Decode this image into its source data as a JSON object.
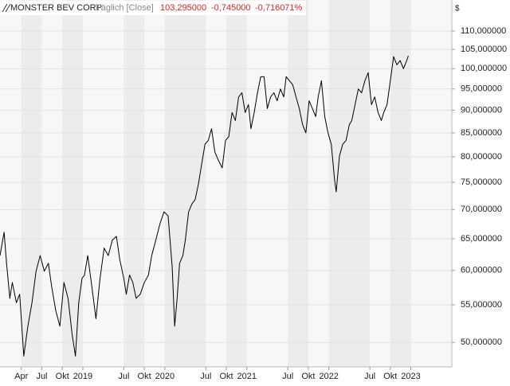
{
  "chart_data": {
    "type": "line",
    "title": "MONSTER BEV CORP",
    "interval": "Täglich [Close]",
    "last": "103,295000",
    "change": "-0,745000",
    "change_pct": "-0,716071%",
    "y_label": "$",
    "log_scale": true,
    "grid": true,
    "ylim": [
      47,
      119
    ],
    "yticks": [
      {
        "value": 50,
        "label": "50,000000"
      },
      {
        "value": 55,
        "label": "55,000000"
      },
      {
        "value": 60,
        "label": "60,000000"
      },
      {
        "value": 65,
        "label": "65,000000"
      },
      {
        "value": 70,
        "label": "70,000000"
      },
      {
        "value": 75,
        "label": "75,000000"
      },
      {
        "value": 80,
        "label": "80,000000"
      },
      {
        "value": 85,
        "label": "85,000000"
      },
      {
        "value": 90,
        "label": "90,000000"
      },
      {
        "value": 95,
        "label": "95,000000"
      },
      {
        "value": 100,
        "label": "100,000000"
      },
      {
        "value": 105,
        "label": "105,000000"
      },
      {
        "value": 110,
        "label": "110,000000"
      }
    ],
    "xlim": [
      2017.99,
      2023.5
    ],
    "xticks": [
      {
        "value": 2018.25,
        "label": "Apr"
      },
      {
        "value": 2018.5,
        "label": "Jul"
      },
      {
        "value": 2018.75,
        "label": "Okt"
      },
      2019,
      {
        "value": 2019.5,
        "label": "Jul"
      },
      {
        "value": 2019.75,
        "label": "Okt"
      },
      2020,
      {
        "value": 2020.5,
        "label": "Jul"
      },
      {
        "value": 2020.75,
        "label": "Okt"
      },
      2021,
      {
        "value": 2021.5,
        "label": "Jul"
      },
      {
        "value": 2021.75,
        "label": "Okt"
      },
      2022,
      {
        "value": 2022.5,
        "label": "Jul"
      },
      {
        "value": 2022.75,
        "label": "Okt"
      },
      2023
    ],
    "series": [
      {
        "name": "MONSTER BEV CORP",
        "color": "#000000",
        "x": [
          2017.99,
          2018.04,
          2018.07,
          2018.11,
          2018.14,
          2018.19,
          2018.23,
          2018.28,
          2018.33,
          2018.38,
          2018.43,
          2018.48,
          2018.53,
          2018.58,
          2018.62,
          2018.67,
          2018.72,
          2018.77,
          2018.82,
          2018.87,
          2018.91,
          2018.95,
          2018.99,
          2019.02,
          2019.06,
          2019.11,
          2019.16,
          2019.21,
          2019.26,
          2019.31,
          2019.36,
          2019.41,
          2019.45,
          2019.5,
          2019.53,
          2019.57,
          2019.61,
          2019.65,
          2019.7,
          2019.75,
          2019.8,
          2019.84,
          2019.89,
          2019.94,
          2019.99,
          2020.04,
          2020.09,
          2020.12,
          2020.15,
          2020.18,
          2020.22,
          2020.25,
          2020.29,
          2020.33,
          2020.37,
          2020.41,
          2020.45,
          2020.49,
          2020.53,
          2020.57,
          2020.61,
          2020.65,
          2020.7,
          2020.74,
          2020.78,
          2020.82,
          2020.86,
          2020.9,
          2020.94,
          2020.98,
          2021.02,
          2021.05,
          2021.09,
          2021.13,
          2021.17,
          2021.21,
          2021.25,
          2021.29,
          2021.33,
          2021.37,
          2021.41,
          2021.45,
          2021.48,
          2021.52,
          2021.56,
          2021.6,
          2021.64,
          2021.68,
          2021.72,
          2021.76,
          2021.8,
          2021.84,
          2021.87,
          2021.91,
          2021.95,
          2021.99,
          2022.03,
          2022.07,
          2022.09,
          2022.13,
          2022.17,
          2022.21,
          2022.25,
          2022.28,
          2022.32,
          2022.36,
          2022.4,
          2022.44,
          2022.48,
          2022.52,
          2022.56,
          2022.6,
          2022.64,
          2022.67,
          2022.71,
          2022.75,
          2022.79,
          2022.83,
          2022.87,
          2022.91,
          2022.95,
          2022.97
        ],
        "values": [
          62.3,
          66.1,
          61.1,
          55.9,
          58.2,
          55.3,
          56.5,
          48.3,
          52.1,
          55.3,
          59.9,
          62.3,
          59.9,
          61.1,
          57.6,
          54.2,
          52.1,
          58.2,
          55.9,
          51.0,
          48.3,
          55.3,
          58.8,
          59.3,
          62.3,
          57.6,
          53.1,
          58.8,
          63.5,
          62.3,
          64.8,
          65.4,
          61.7,
          58.8,
          56.5,
          59.3,
          58.2,
          55.9,
          56.5,
          58.2,
          59.3,
          62.3,
          64.8,
          67.5,
          69.6,
          68.9,
          60.5,
          52.1,
          55.9,
          61.1,
          62.3,
          64.8,
          69.6,
          71.0,
          71.8,
          74.7,
          78.6,
          82.6,
          83.4,
          85.9,
          81.0,
          79.4,
          77.8,
          83.4,
          84.2,
          89.5,
          87.7,
          93.1,
          94.1,
          89.5,
          91.3,
          85.9,
          89.5,
          94.1,
          98.0,
          98.0,
          90.4,
          93.1,
          94.1,
          92.2,
          95.0,
          93.1,
          98.0,
          97.0,
          96.0,
          93.1,
          90.4,
          86.8,
          85.0,
          92.2,
          90.4,
          88.6,
          93.1,
          97.0,
          88.6,
          85.0,
          82.6,
          75.5,
          73.2,
          80.2,
          82.6,
          83.4,
          86.8,
          87.7,
          91.3,
          95.0,
          94.1,
          97.0,
          99.0,
          91.3,
          93.1,
          89.5,
          87.7,
          89.5,
          91.3,
          97.0,
          103.1,
          101.0,
          102.1,
          100.0,
          102.1,
          103.3
        ]
      }
    ]
  }
}
